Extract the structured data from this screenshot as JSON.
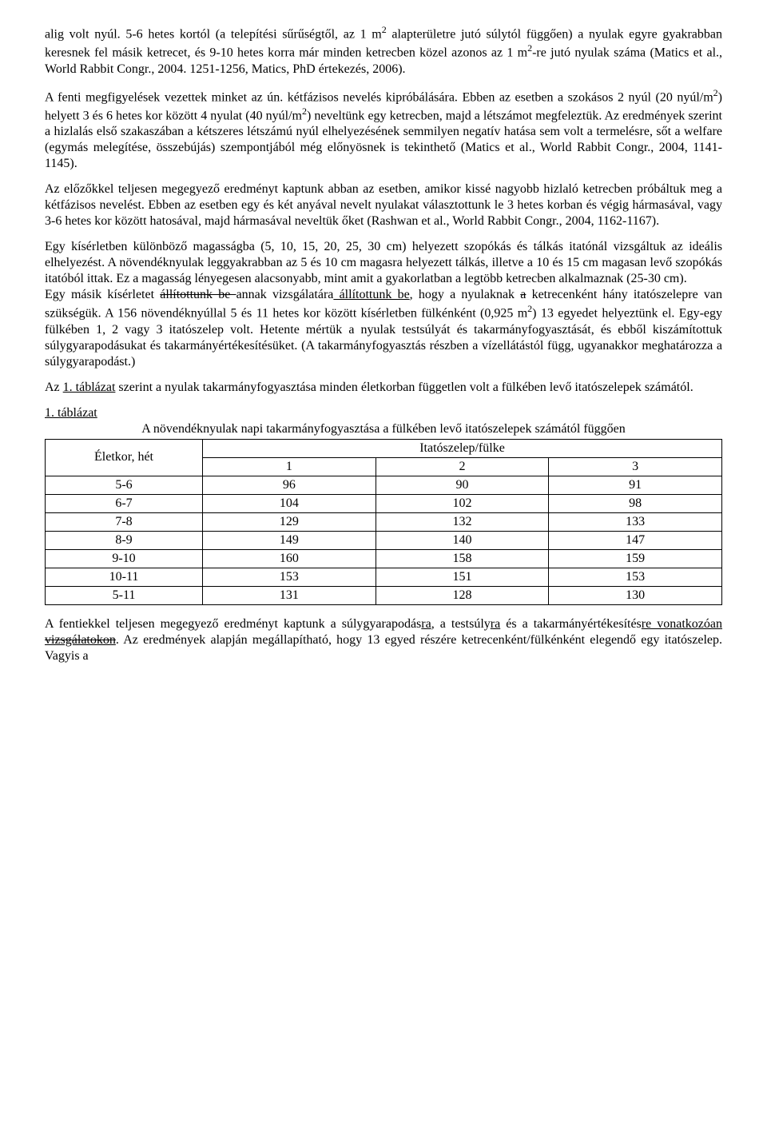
{
  "para1_pre": "alig volt nyúl. 5-6 hetes kortól (a telepítési sűrűségtől, az 1 m",
  "para1_sup1": "2",
  "para1_mid": " alapterületre jutó súlytól függően) a nyulak egyre gyakrabban keresnek fel másik ketrecet, és 9-10 hetes korra már minden ketrecben közel azonos az 1 m",
  "para1_sup2": "2",
  "para1_end": "-re jutó nyulak száma (Matics et al., World Rabbit Congr., 2004. 1251-1256, Matics, PhD értekezés, 2006).",
  "para2_pre": "A fenti megfigyelések vezettek minket az ún. kétfázisos nevelés kipróbálására. Ebben az esetben a szokásos 2 nyúl (20 nyúl/m",
  "para2_sup1": "2",
  "para2_mid": ") helyett 3 és 6 hetes kor között 4 nyulat (40 nyúl/m",
  "para2_sup2": "2",
  "para2_end": ") neveltünk egy ketrecben, majd a létszámot megfeleztük. Az eredmények szerint a hizlalás első szakaszában a kétszeres létszámú nyúl elhelyezésének semmilyen negatív hatása sem volt a termelésre, sőt a welfare (egymás melegítése, összebújás) szempontjából még előnyösnek is tekinthető (Matics et al., World Rabbit Congr., 2004, 1141-1145).",
  "para3": "Az előzőkkel teljesen megegyező eredményt kaptunk abban az esetben, amikor kissé nagyobb hizlaló ketrecben próbáltuk meg a kétfázisos nevelést. Ebben az esetben egy és két anyával nevelt nyulakat választottunk le 3 hetes korban és végig hármasával, vagy 3-6 hetes kor között hatosával, majd hármasával neveltük őket (Rashwan et al., World Rabbit Congr., 2004, 1162-1167).",
  "para4": "Egy kísérletben különböző magasságba (5, 10, 15, 20, 25, 30 cm) helyezett szopókás és tálkás itatónál vizsgáltuk az ideális elhelyezést. A növendéknyulak leggyakrabban az 5 és 10 cm magasra helyezett tálkás, illetve a 10 és 15 cm magasan levő szopókás itatóból ittak. Ez a magasság lényegesen alacsonyabb, mint amit a gyakorlatban a legtöbb ketrecben alkalmaznak (25-30 cm).",
  "para5_a": "Egy másik kísérletet ",
  "para5_strike1": "állítottunk be ",
  "para5_b": "annak vizsgálatára",
  "para5_ins1": " állítottunk be",
  "para5_c": ", hogy a nyulaknak ",
  "para5_strike2": "a",
  "para5_d": " ketrecenként hány itatószelepre van szükségük. A 156 növendéknyúllal 5 és 11 hetes kor között kísérletben fülkénként (0,925 m",
  "para5_sup1": "2",
  "para5_e": ") 13 egyedet helyeztünk el. Egy-egy fülkében 1, 2 vagy 3 itatószelep volt. Hetente mértük a nyulak testsúlyát és takarmányfogyasztását, és ebből kiszámítottuk súlygyarapodásukat és takarmányértékesítésüket. (A takarmányfogyasztás részben a vízellátástól függ, ugyanakkor meghatározza a súlygyarapodást.)",
  "para6_a": "Az ",
  "para6_link": "1. táblázat",
  "para6_b": " szerint a nyulak takarmányfogyasztása minden életkorban független volt a fülkében levő itatószelepek számától.",
  "table_label": "1. táblázat",
  "table_caption": "A növendéknyulak napi takarmányfogyasztása a fülkében levő itatószelepek számától függően",
  "table": {
    "col_age": "Életkor, hét",
    "header_group": "Itatószelep/fülke",
    "cols": [
      "1",
      "2",
      "3"
    ],
    "rows": [
      {
        "age": "5-6",
        "v": [
          "96",
          "90",
          "91"
        ],
        "bold": false
      },
      {
        "age": "6-7",
        "v": [
          "104",
          "102",
          "98"
        ],
        "bold": false
      },
      {
        "age": "7-8",
        "v": [
          "129",
          "132",
          "133"
        ],
        "bold": false
      },
      {
        "age": "8-9",
        "v": [
          "149",
          "140",
          "147"
        ],
        "bold": false
      },
      {
        "age": "9-10",
        "v": [
          "160",
          "158",
          "159"
        ],
        "bold": false
      },
      {
        "age": "10-11",
        "v": [
          "153",
          "151",
          "153"
        ],
        "bold": false
      },
      {
        "age": "5-11",
        "v": [
          "131",
          "128",
          "130"
        ],
        "bold": true
      }
    ]
  },
  "para7_a": "A fentiekkel teljesen megegyező eredményt kaptunk a súlygyarapodás",
  "para7_ins1": "ra",
  "para7_b": ", a testsúly",
  "para7_ins2": "ra",
  "para7_c": " és a takarmányértékesítés",
  "para7_ins3": "re vonatkozóan",
  "para7_strike1": " vizsgálatokon",
  "para7_d": ". Az eredmények alapján megállapítható, hogy 13 egyed részére ketrecenként/fülkénként elegendő egy itatószelep. Vagyis a"
}
